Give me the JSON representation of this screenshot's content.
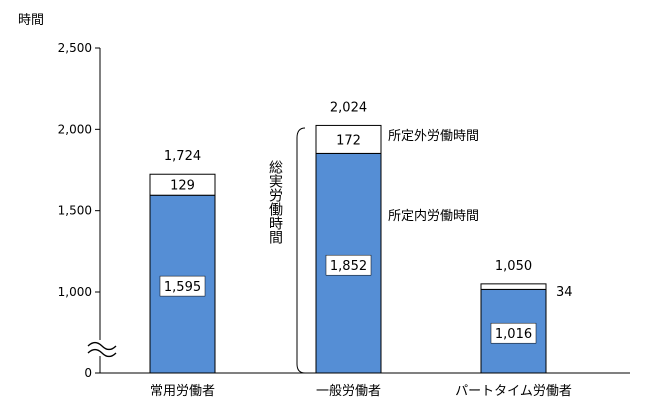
{
  "chart_data": {
    "type": "bar",
    "stacked": true,
    "axis_break": true,
    "ylabel": "時間",
    "ylim": [
      0,
      2500
    ],
    "yticks": [
      {
        "value": 0,
        "label": "0"
      },
      {
        "value": 1000,
        "label": "1,000"
      },
      {
        "value": 1500,
        "label": "1,500"
      },
      {
        "value": 2000,
        "label": "2,000"
      },
      {
        "value": 2500,
        "label": "2,500"
      }
    ],
    "categories": [
      "常用労働者",
      "一般労働者",
      "パートタイム労働者"
    ],
    "series": [
      {
        "name": "所定内労働時間",
        "values": [
          1595,
          1852,
          1016
        ],
        "labels": [
          "1,595",
          "1,852",
          "1,016"
        ],
        "color": "#558ed5"
      },
      {
        "name": "所定外労働時間",
        "values": [
          129,
          172,
          34
        ],
        "labels": [
          "129",
          "172",
          "34"
        ],
        "color": "#ffffff"
      }
    ],
    "totals": [
      1724,
      2024,
      1050
    ],
    "total_labels": [
      "1,724",
      "2,024",
      "1,050"
    ],
    "bracket_label": "総実労働時間",
    "grid": false
  }
}
